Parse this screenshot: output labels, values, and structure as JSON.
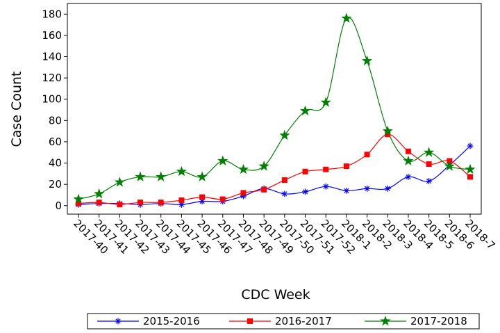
{
  "chart_data": {
    "type": "line",
    "x_label": "CDC Week",
    "y_label": "Case Count",
    "categories": [
      "2017-40",
      "2017-41",
      "2017-42",
      "2017-43",
      "2017-44",
      "2017-45",
      "2017-46",
      "2017-47",
      "2017-48",
      "2017-49",
      "2017-50",
      "2017-51",
      "2017-52",
      "2018-1",
      "2018-2",
      "2018-3",
      "2018-4",
      "2018-5",
      "2018-6",
      "2018-7"
    ],
    "series": [
      {
        "name": "2015-2016",
        "color": "#0000ff",
        "marker": "asterisk",
        "values": [
          1,
          2,
          2,
          1,
          2,
          1,
          4,
          4,
          9,
          16,
          11,
          13,
          18,
          14,
          16,
          16,
          27,
          23,
          38,
          56
        ]
      },
      {
        "name": "2016-2017",
        "color": "#ff0000",
        "marker": "square",
        "values": [
          2,
          3,
          1,
          3,
          3,
          5,
          8,
          6,
          12,
          15,
          24,
          32,
          34,
          37,
          48,
          67,
          51,
          39,
          42,
          27
        ]
      },
      {
        "name": "2017-2018",
        "color": "#008000",
        "marker": "star",
        "values": [
          6,
          11,
          22,
          27,
          27,
          32,
          27,
          42,
          34,
          37,
          66,
          89,
          97,
          176,
          136,
          70,
          42,
          50,
          37,
          34
        ]
      }
    ],
    "ylim": [
      -8,
      190
    ],
    "yticks": [
      0,
      20,
      40,
      60,
      80,
      100,
      120,
      140,
      160,
      180
    ],
    "grid": false
  }
}
